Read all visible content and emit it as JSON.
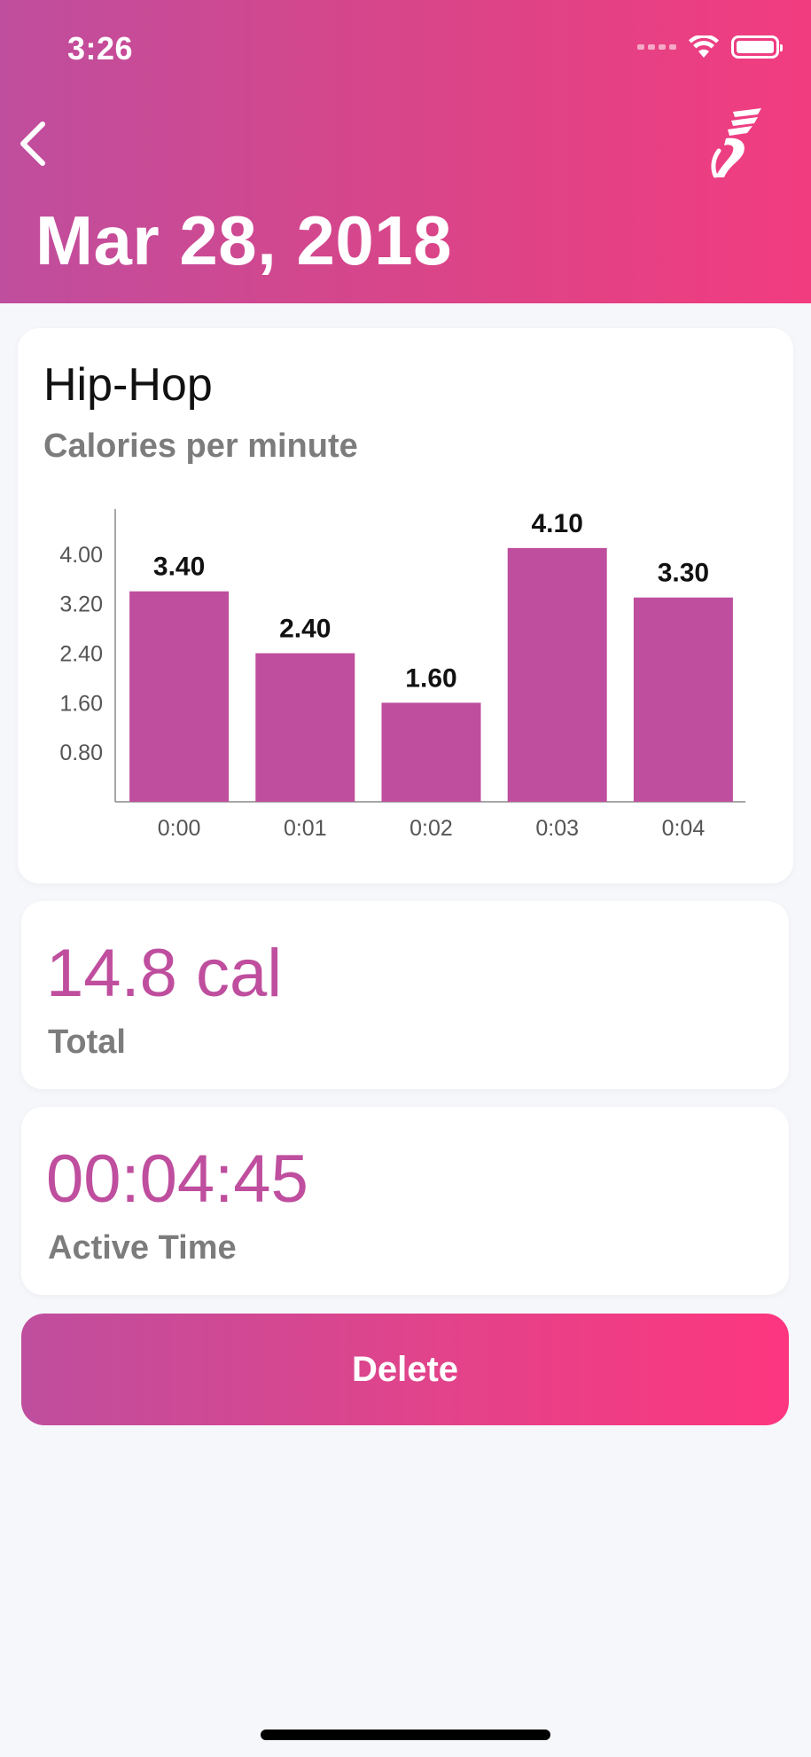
{
  "status_bar": {
    "time": "3:26"
  },
  "header": {
    "title": "Mar 28, 2018",
    "back_icon": "chevron-left-icon",
    "logo_icon": "winged-shoe-icon"
  },
  "chart_card": {
    "workout_name": "Hip-Hop",
    "subtitle": "Calories per minute"
  },
  "chart_data": {
    "type": "bar",
    "categories": [
      "0:00",
      "0:01",
      "0:02",
      "0:03",
      "0:04"
    ],
    "values": [
      3.4,
      2.4,
      1.6,
      4.1,
      3.3
    ],
    "value_labels": [
      "3.40",
      "2.40",
      "1.60",
      "4.10",
      "3.30"
    ],
    "y_ticks": [
      "0.80",
      "1.60",
      "2.40",
      "3.20",
      "4.00"
    ],
    "y_tick_values": [
      0.8,
      1.6,
      2.4,
      3.2,
      4.0
    ],
    "ylim": [
      0,
      4.7
    ],
    "bar_color": "#bf4e9e",
    "grid": false,
    "title": "Calories per minute"
  },
  "stats": {
    "total_value": "14.8 cal",
    "total_label": "Total",
    "active_time_value": "00:04:45",
    "active_time_label": "Active Time"
  },
  "actions": {
    "delete_label": "Delete"
  },
  "colors": {
    "accent": "#bf4e9e",
    "gradient_end": "#fd367f"
  }
}
